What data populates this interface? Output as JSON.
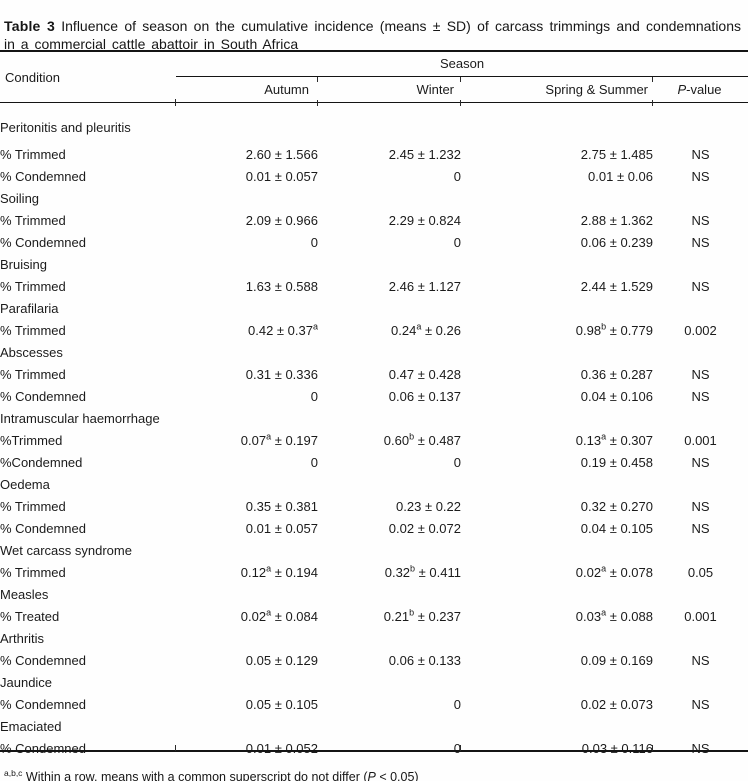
{
  "title": {
    "label": "Table 3",
    "text": "Influence of season on the cumulative incidence (means ± SD) of carcass trimmings and condemnations in a commercial cattle abattoir in South Africa"
  },
  "table": {
    "header": {
      "condition": "Condition",
      "season": "Season",
      "columns": [
        "Autumn",
        "Winter",
        "Spring & Summer"
      ],
      "p_column": {
        "italic": "P",
        "rest": "-value"
      }
    },
    "rows": [
      {
        "type": "category",
        "label": "Peritonitis and pleuritis"
      },
      {
        "type": "data",
        "label": "% Trimmed",
        "autumn": "2.60 ± 1.566",
        "winter": "2.45 ± 1.232",
        "spring_summer": "2.75 ± 1.485",
        "p": "NS"
      },
      {
        "type": "data",
        "label": "% Condemned",
        "autumn": "0.01 ± 0.057",
        "winter": "0",
        "spring_summer": "0.01 ± 0.06",
        "p": "NS"
      },
      {
        "type": "category",
        "label": "Soiling"
      },
      {
        "type": "data",
        "label": "% Trimmed",
        "autumn": "2.09 ± 0.966",
        "winter": "2.29 ± 0.824",
        "spring_summer": "2.88 ± 1.362",
        "p": "NS"
      },
      {
        "type": "data",
        "label": "% Condemned",
        "autumn": "0",
        "winter": "0",
        "spring_summer": "0.06 ± 0.239",
        "p": "NS"
      },
      {
        "type": "category",
        "label": "Bruising"
      },
      {
        "type": "data",
        "label": "% Trimmed",
        "autumn": "1.63 ± 0.588",
        "winter": "2.46 ± 1.127",
        "spring_summer": "2.44 ± 1.529",
        "p": "NS"
      },
      {
        "type": "category",
        "label": "Parafilaria"
      },
      {
        "type": "data",
        "label": "% Trimmed",
        "autumn": "0.42 ± 0.37^a",
        "winter": "0.24^a ± 0.26",
        "spring_summer": "0.98^b ± 0.779",
        "p": "0.002"
      },
      {
        "type": "category",
        "label": "Abscesses"
      },
      {
        "type": "data",
        "label": "% Trimmed",
        "autumn": "0.31 ± 0.336",
        "winter": "0.47 ± 0.428",
        "spring_summer": "0.36 ± 0.287",
        "p": "NS"
      },
      {
        "type": "data",
        "label": "% Condemned",
        "autumn": "0",
        "winter": "0.06 ± 0.137",
        "spring_summer": "0.04 ± 0.106",
        "p": "NS"
      },
      {
        "type": "category",
        "label": "Intramuscular haemorrhage"
      },
      {
        "type": "data",
        "label": "%Trimmed",
        "autumn": "0.07^a ± 0.197",
        "winter": "0.60^b ± 0.487",
        "spring_summer": "0.13^a ± 0.307",
        "p": "0.001"
      },
      {
        "type": "data",
        "label": "%Condemned",
        "autumn": "0",
        "winter": "0",
        "spring_summer": "0.19 ± 0.458",
        "p": "NS"
      },
      {
        "type": "category",
        "label": "Oedema"
      },
      {
        "type": "data",
        "label": "% Trimmed",
        "autumn": "0.35 ± 0.381",
        "winter": "0.23 ± 0.22",
        "spring_summer": "0.32 ± 0.270",
        "p": "NS"
      },
      {
        "type": "data",
        "label": "% Condemned",
        "autumn": "0.01 ± 0.057",
        "winter": "0.02 ± 0.072",
        "spring_summer": "0.04 ± 0.105",
        "p": "NS"
      },
      {
        "type": "category",
        "label": "Wet carcass syndrome"
      },
      {
        "type": "data",
        "label": "% Trimmed",
        "autumn": "0.12^a ± 0.194",
        "winter": "0.32^b ± 0.411",
        "spring_summer": "0.02^a ± 0.078",
        "p": "0.05"
      },
      {
        "type": "category",
        "label": "Measles"
      },
      {
        "type": "data",
        "label": "% Treated",
        "autumn": "0.02^a ± 0.084",
        "winter": "0.21^b ± 0.237",
        "spring_summer": "0.03^a ± 0.088",
        "p": "0.001"
      },
      {
        "type": "category",
        "label": "Arthritis"
      },
      {
        "type": "data",
        "label": "% Condemned",
        "autumn": "0.05 ± 0.129",
        "winter": "0.06 ± 0.133",
        "spring_summer": "0.09 ± 0.169",
        "p": "NS"
      },
      {
        "type": "category",
        "label": "Jaundice"
      },
      {
        "type": "data",
        "label": "% Condemned",
        "autumn": "0.05 ± 0.105",
        "winter": "0",
        "spring_summer": "0.02 ± 0.073",
        "p": "NS"
      },
      {
        "type": "category",
        "label": "Emaciated"
      },
      {
        "type": "data",
        "label": "% Condemned",
        "autumn": "0.01 ± 0.052",
        "winter": "0",
        "spring_summer": "0.03 ± 0.116",
        "p": "NS"
      }
    ]
  },
  "footnote": {
    "superscript": "a,b,c",
    "before_p": "Within a row, means with a common superscript do not differ (",
    "p": "P",
    "after_p": " < 0.05)"
  }
}
